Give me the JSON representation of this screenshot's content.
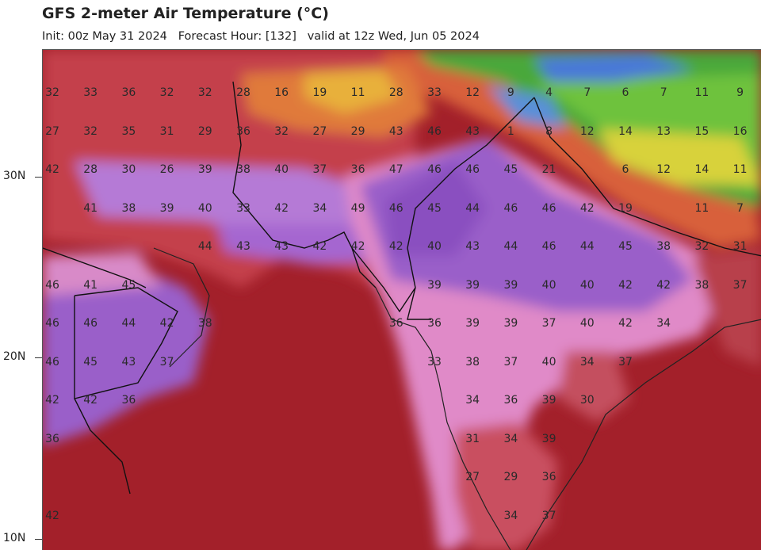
{
  "title": "GFS 2-meter Air Temperature (°C)",
  "subtitle": {
    "init": "Init: 00z May 31 2024",
    "forecast_hour": "Forecast Hour: [132]",
    "valid": "valid at 12z Wed, Jun 05 2024"
  },
  "lat_ticks": [
    "30N",
    "20N",
    "10N"
  ],
  "colors": {
    "sea_hot": "#a3202a",
    "land_hot": "#c0404a",
    "very_hot": "#9a5fc9",
    "hot_pink": "#e08ac8",
    "mountain_green": "#4aa83a",
    "cool_yellow": "#d8d23a",
    "cold_blue": "#4a78d8"
  },
  "temperatures": [
    {
      "v": "32",
      "row": 0,
      "col": 0
    },
    {
      "v": "33",
      "row": 0,
      "col": 1
    },
    {
      "v": "36",
      "row": 0,
      "col": 2
    },
    {
      "v": "32",
      "row": 0,
      "col": 3
    },
    {
      "v": "32",
      "row": 0,
      "col": 4
    },
    {
      "v": "28",
      "row": 0,
      "col": 5
    },
    {
      "v": "16",
      "row": 0,
      "col": 6
    },
    {
      "v": "19",
      "row": 0,
      "col": 7
    },
    {
      "v": "11",
      "row": 0,
      "col": 8
    },
    {
      "v": "28",
      "row": 0,
      "col": 9
    },
    {
      "v": "33",
      "row": 0,
      "col": 10
    },
    {
      "v": "12",
      "row": 0,
      "col": 11
    },
    {
      "v": "9",
      "row": 0,
      "col": 12
    },
    {
      "v": "4",
      "row": 0,
      "col": 13
    },
    {
      "v": "7",
      "row": 0,
      "col": 14
    },
    {
      "v": "6",
      "row": 0,
      "col": 15
    },
    {
      "v": "7",
      "row": 0,
      "col": 16
    },
    {
      "v": "11",
      "row": 0,
      "col": 17
    },
    {
      "v": "9",
      "row": 0,
      "col": 18
    },
    {
      "v": "27",
      "row": 1,
      "col": 0
    },
    {
      "v": "32",
      "row": 1,
      "col": 1
    },
    {
      "v": "35",
      "row": 1,
      "col": 2
    },
    {
      "v": "31",
      "row": 1,
      "col": 3
    },
    {
      "v": "29",
      "row": 1,
      "col": 4
    },
    {
      "v": "36",
      "row": 1,
      "col": 5
    },
    {
      "v": "32",
      "row": 1,
      "col": 6
    },
    {
      "v": "27",
      "row": 1,
      "col": 7
    },
    {
      "v": "29",
      "row": 1,
      "col": 8
    },
    {
      "v": "43",
      "row": 1,
      "col": 9
    },
    {
      "v": "46",
      "row": 1,
      "col": 10
    },
    {
      "v": "43",
      "row": 1,
      "col": 11
    },
    {
      "v": "1",
      "row": 1,
      "col": 12
    },
    {
      "v": "8",
      "row": 1,
      "col": 13
    },
    {
      "v": "12",
      "row": 1,
      "col": 14
    },
    {
      "v": "14",
      "row": 1,
      "col": 15
    },
    {
      "v": "13",
      "row": 1,
      "col": 16
    },
    {
      "v": "15",
      "row": 1,
      "col": 17
    },
    {
      "v": "16",
      "row": 1,
      "col": 18
    },
    {
      "v": "42",
      "row": 2,
      "col": 0
    },
    {
      "v": "28",
      "row": 2,
      "col": 1
    },
    {
      "v": "30",
      "row": 2,
      "col": 2
    },
    {
      "v": "26",
      "row": 2,
      "col": 3
    },
    {
      "v": "39",
      "row": 2,
      "col": 4
    },
    {
      "v": "38",
      "row": 2,
      "col": 5
    },
    {
      "v": "40",
      "row": 2,
      "col": 6
    },
    {
      "v": "37",
      "row": 2,
      "col": 7
    },
    {
      "v": "36",
      "row": 2,
      "col": 8
    },
    {
      "v": "47",
      "row": 2,
      "col": 9
    },
    {
      "v": "46",
      "row": 2,
      "col": 10
    },
    {
      "v": "46",
      "row": 2,
      "col": 11
    },
    {
      "v": "45",
      "row": 2,
      "col": 12
    },
    {
      "v": "21",
      "row": 2,
      "col": 13
    },
    {
      "v": "6",
      "row": 2,
      "col": 15
    },
    {
      "v": "12",
      "row": 2,
      "col": 16
    },
    {
      "v": "14",
      "row": 2,
      "col": 17
    },
    {
      "v": "11",
      "row": 2,
      "col": 18
    },
    {
      "v": "41",
      "row": 3,
      "col": 1
    },
    {
      "v": "38",
      "row": 3,
      "col": 2
    },
    {
      "v": "39",
      "row": 3,
      "col": 3
    },
    {
      "v": "40",
      "row": 3,
      "col": 4
    },
    {
      "v": "33",
      "row": 3,
      "col": 5
    },
    {
      "v": "42",
      "row": 3,
      "col": 6
    },
    {
      "v": "34",
      "row": 3,
      "col": 7
    },
    {
      "v": "49",
      "row": 3,
      "col": 8
    },
    {
      "v": "46",
      "row": 3,
      "col": 9
    },
    {
      "v": "45",
      "row": 3,
      "col": 10
    },
    {
      "v": "44",
      "row": 3,
      "col": 11
    },
    {
      "v": "46",
      "row": 3,
      "col": 12
    },
    {
      "v": "46",
      "row": 3,
      "col": 13
    },
    {
      "v": "42",
      "row": 3,
      "col": 14
    },
    {
      "v": "19",
      "row": 3,
      "col": 15
    },
    {
      "v": "11",
      "row": 3,
      "col": 17
    },
    {
      "v": "7",
      "row": 3,
      "col": 18
    },
    {
      "v": "44",
      "row": 4,
      "col": 4
    },
    {
      "v": "43",
      "row": 4,
      "col": 5
    },
    {
      "v": "43",
      "row": 4,
      "col": 6
    },
    {
      "v": "42",
      "row": 4,
      "col": 7
    },
    {
      "v": "42",
      "row": 4,
      "col": 8
    },
    {
      "v": "42",
      "row": 4,
      "col": 9
    },
    {
      "v": "40",
      "row": 4,
      "col": 10
    },
    {
      "v": "43",
      "row": 4,
      "col": 11
    },
    {
      "v": "44",
      "row": 4,
      "col": 12
    },
    {
      "v": "46",
      "row": 4,
      "col": 13
    },
    {
      "v": "44",
      "row": 4,
      "col": 14
    },
    {
      "v": "45",
      "row": 4,
      "col": 15
    },
    {
      "v": "38",
      "row": 4,
      "col": 16
    },
    {
      "v": "32",
      "row": 4,
      "col": 17
    },
    {
      "v": "31",
      "row": 4,
      "col": 18
    },
    {
      "v": "46",
      "row": 5,
      "col": 0
    },
    {
      "v": "41",
      "row": 5,
      "col": 1
    },
    {
      "v": "45",
      "row": 5,
      "col": 2
    },
    {
      "v": "39",
      "row": 5,
      "col": 10
    },
    {
      "v": "39",
      "row": 5,
      "col": 11
    },
    {
      "v": "39",
      "row": 5,
      "col": 12
    },
    {
      "v": "40",
      "row": 5,
      "col": 13
    },
    {
      "v": "40",
      "row": 5,
      "col": 14
    },
    {
      "v": "42",
      "row": 5,
      "col": 15
    },
    {
      "v": "42",
      "row": 5,
      "col": 16
    },
    {
      "v": "38",
      "row": 5,
      "col": 17
    },
    {
      "v": "37",
      "row": 5,
      "col": 18
    },
    {
      "v": "46",
      "row": 6,
      "col": 0
    },
    {
      "v": "46",
      "row": 6,
      "col": 1
    },
    {
      "v": "44",
      "row": 6,
      "col": 2
    },
    {
      "v": "42",
      "row": 6,
      "col": 3
    },
    {
      "v": "38",
      "row": 6,
      "col": 4
    },
    {
      "v": "36",
      "row": 6,
      "col": 9
    },
    {
      "v": "36",
      "row": 6,
      "col": 10
    },
    {
      "v": "39",
      "row": 6,
      "col": 11
    },
    {
      "v": "39",
      "row": 6,
      "col": 12
    },
    {
      "v": "37",
      "row": 6,
      "col": 13
    },
    {
      "v": "40",
      "row": 6,
      "col": 14
    },
    {
      "v": "42",
      "row": 6,
      "col": 15
    },
    {
      "v": "34",
      "row": 6,
      "col": 16
    },
    {
      "v": "46",
      "row": 7,
      "col": 0
    },
    {
      "v": "45",
      "row": 7,
      "col": 1
    },
    {
      "v": "43",
      "row": 7,
      "col": 2
    },
    {
      "v": "37",
      "row": 7,
      "col": 3
    },
    {
      "v": "33",
      "row": 7,
      "col": 10
    },
    {
      "v": "38",
      "row": 7,
      "col": 11
    },
    {
      "v": "37",
      "row": 7,
      "col": 12
    },
    {
      "v": "40",
      "row": 7,
      "col": 13
    },
    {
      "v": "34",
      "row": 7,
      "col": 14
    },
    {
      "v": "37",
      "row": 7,
      "col": 15
    },
    {
      "v": "42",
      "row": 8,
      "col": 0
    },
    {
      "v": "42",
      "row": 8,
      "col": 1
    },
    {
      "v": "36",
      "row": 8,
      "col": 2
    },
    {
      "v": "34",
      "row": 8,
      "col": 11
    },
    {
      "v": "36",
      "row": 8,
      "col": 12
    },
    {
      "v": "39",
      "row": 8,
      "col": 13
    },
    {
      "v": "30",
      "row": 8,
      "col": 14
    },
    {
      "v": "36",
      "row": 9,
      "col": 0
    },
    {
      "v": "31",
      "row": 9,
      "col": 11
    },
    {
      "v": "34",
      "row": 9,
      "col": 12
    },
    {
      "v": "39",
      "row": 9,
      "col": 13
    },
    {
      "v": "27",
      "row": 10,
      "col": 11
    },
    {
      "v": "29",
      "row": 10,
      "col": 12
    },
    {
      "v": "36",
      "row": 10,
      "col": 13
    },
    {
      "v": "42",
      "row": 11,
      "col": 0
    },
    {
      "v": "34",
      "row": 11,
      "col": 12
    },
    {
      "v": "37",
      "row": 11,
      "col": 13
    }
  ]
}
